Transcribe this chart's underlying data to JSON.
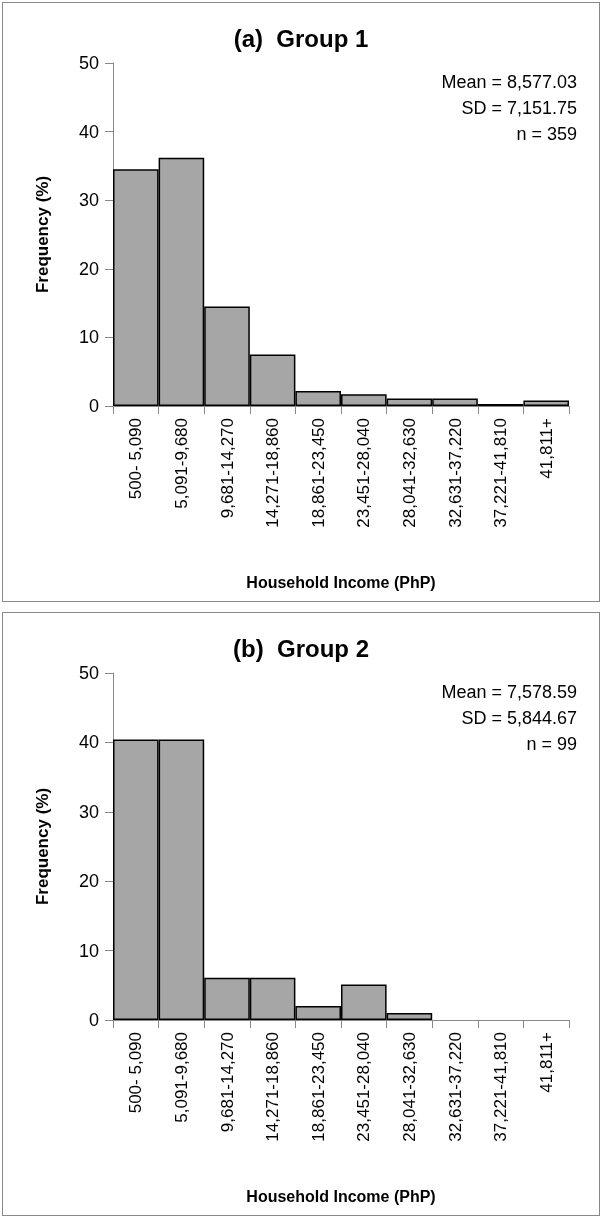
{
  "chart_data": [
    {
      "type": "bar",
      "title": "(a)  Group 1",
      "xlabel": "Household Income (PhP)",
      "ylabel": "Frequency (%)",
      "categories": [
        "500- 5,090",
        "5,091-9,680",
        "9,681-14,270",
        "14,271-18,860",
        "18,861-23,450",
        "23,451-28,040",
        "28,041-32,630",
        "32,631-37,220",
        "37,221-41,810",
        "41,811+"
      ],
      "values": [
        34.5,
        36.2,
        14.5,
        7.5,
        2.2,
        1.7,
        1.1,
        1.1,
        0.3,
        0.8
      ],
      "color": "#a6a6a6",
      "ylim": [
        0,
        50
      ],
      "yticks": [
        0,
        10,
        20,
        30,
        40,
        50
      ],
      "grid": false,
      "annotations": [
        "Mean = 8,577.03",
        "SD = 7,151.75",
        "n = 359"
      ]
    },
    {
      "type": "bar",
      "title": "(b)  Group 2",
      "xlabel": "Household Income (PhP)",
      "ylabel": "Frequency (%)",
      "categories": [
        "500- 5,090",
        "5,091-9,680",
        "9,681-14,270",
        "14,271-18,860",
        "18,861-23,450",
        "23,451-28,040",
        "28,041-32,630",
        "32,631-37,220",
        "37,221-41,810",
        "41,811+"
      ],
      "values": [
        40.4,
        40.4,
        6.1,
        6.1,
        2.0,
        5.1,
        1.0,
        0,
        0,
        0
      ],
      "color": "#a6a6a6",
      "ylim": [
        0,
        50
      ],
      "yticks": [
        0,
        10,
        20,
        30,
        40,
        50
      ],
      "grid": false,
      "annotations": [
        "Mean = 7,578.59",
        "SD = 5,844.67",
        "n = 99"
      ]
    }
  ]
}
